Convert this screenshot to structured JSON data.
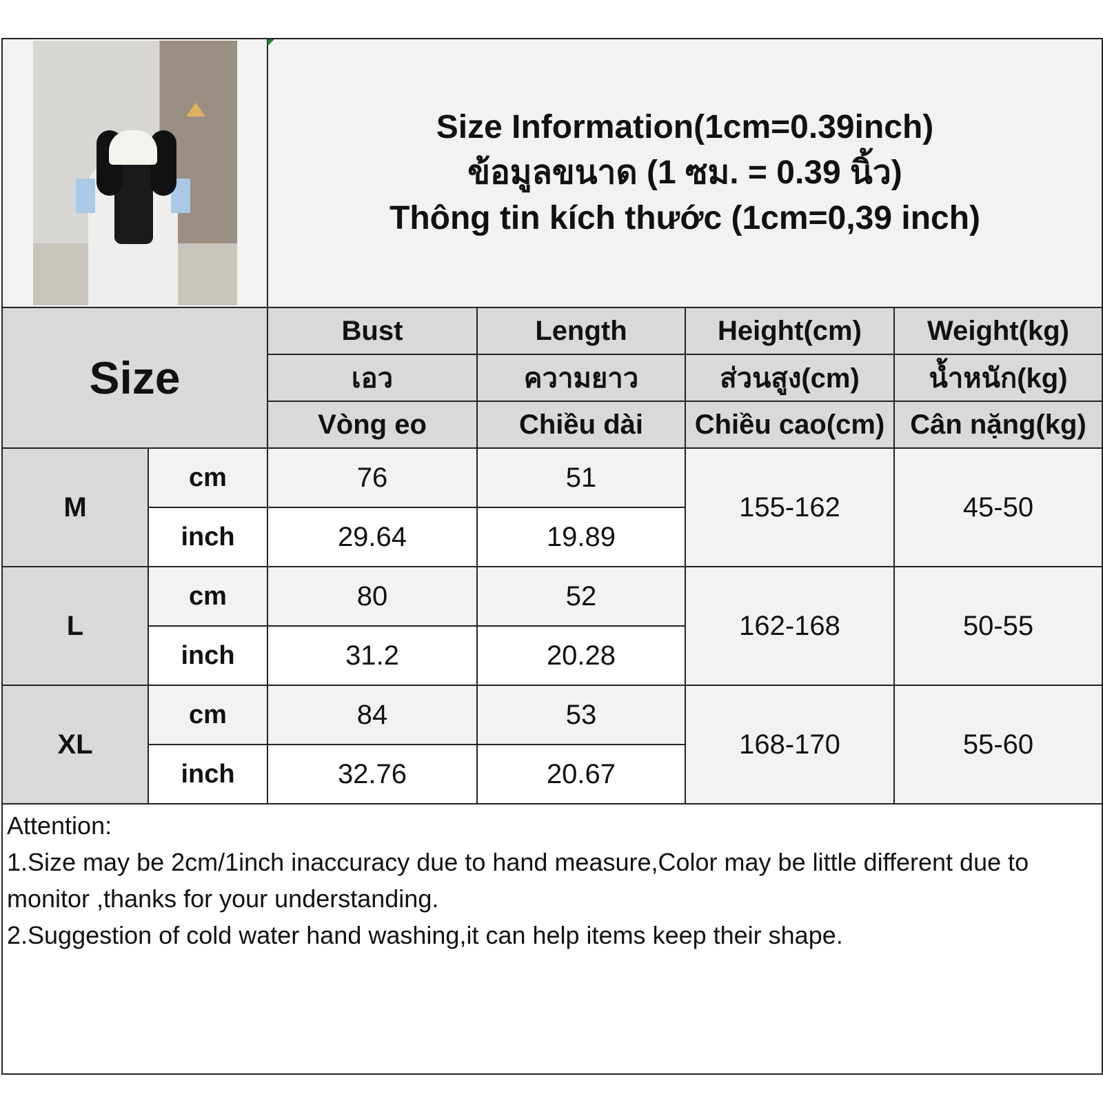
{
  "title": {
    "en": "Size Information(1cm=0.39inch)",
    "th": "ข้อมูลขนาด (1 ซม. = 0.39 นิ้ว)",
    "vi": "Thông tin kích thước (1cm=0,39 inch)"
  },
  "size_header": "Size",
  "columns": [
    {
      "en": "Bust",
      "th": "เอว",
      "vi": "Vòng eo"
    },
    {
      "en": "Length",
      "th": "ความยาว",
      "vi": "Chiều dài"
    },
    {
      "en": "Height(cm)",
      "th": "ส่วนสูง(cm)",
      "vi": "Chiều cao(cm)"
    },
    {
      "en": "Weight(kg)",
      "th": "น้ำหนัก(kg)",
      "vi": "Cân nặng(kg)"
    }
  ],
  "units": {
    "cm": "cm",
    "inch": "inch"
  },
  "rows": [
    {
      "size": "M",
      "cm": {
        "bust": "76",
        "length": "51"
      },
      "inch": {
        "bust": "29.64",
        "length": "19.89"
      },
      "height": "155-162",
      "weight": "45-50"
    },
    {
      "size": "L",
      "cm": {
        "bust": "80",
        "length": "52"
      },
      "inch": {
        "bust": "31.2",
        "length": "20.28"
      },
      "height": "162-168",
      "weight": "50-55"
    },
    {
      "size": "XL",
      "cm": {
        "bust": "84",
        "length": "53"
      },
      "inch": {
        "bust": "32.76",
        "length": "20.67"
      },
      "height": "168-170",
      "weight": "55-60"
    }
  ],
  "notes": [
    "Attention:",
    "1.Size may be 2cm/1inch inaccuracy due to hand measure,Color may be little different due to monitor ,thanks for your understanding.",
    "2.Suggestion of cold water hand washing,it can help items keep their shape."
  ],
  "colors": {
    "header_bg": "#d9d9d9",
    "cell_bg": "#f2f2f2",
    "border": "#222222"
  }
}
